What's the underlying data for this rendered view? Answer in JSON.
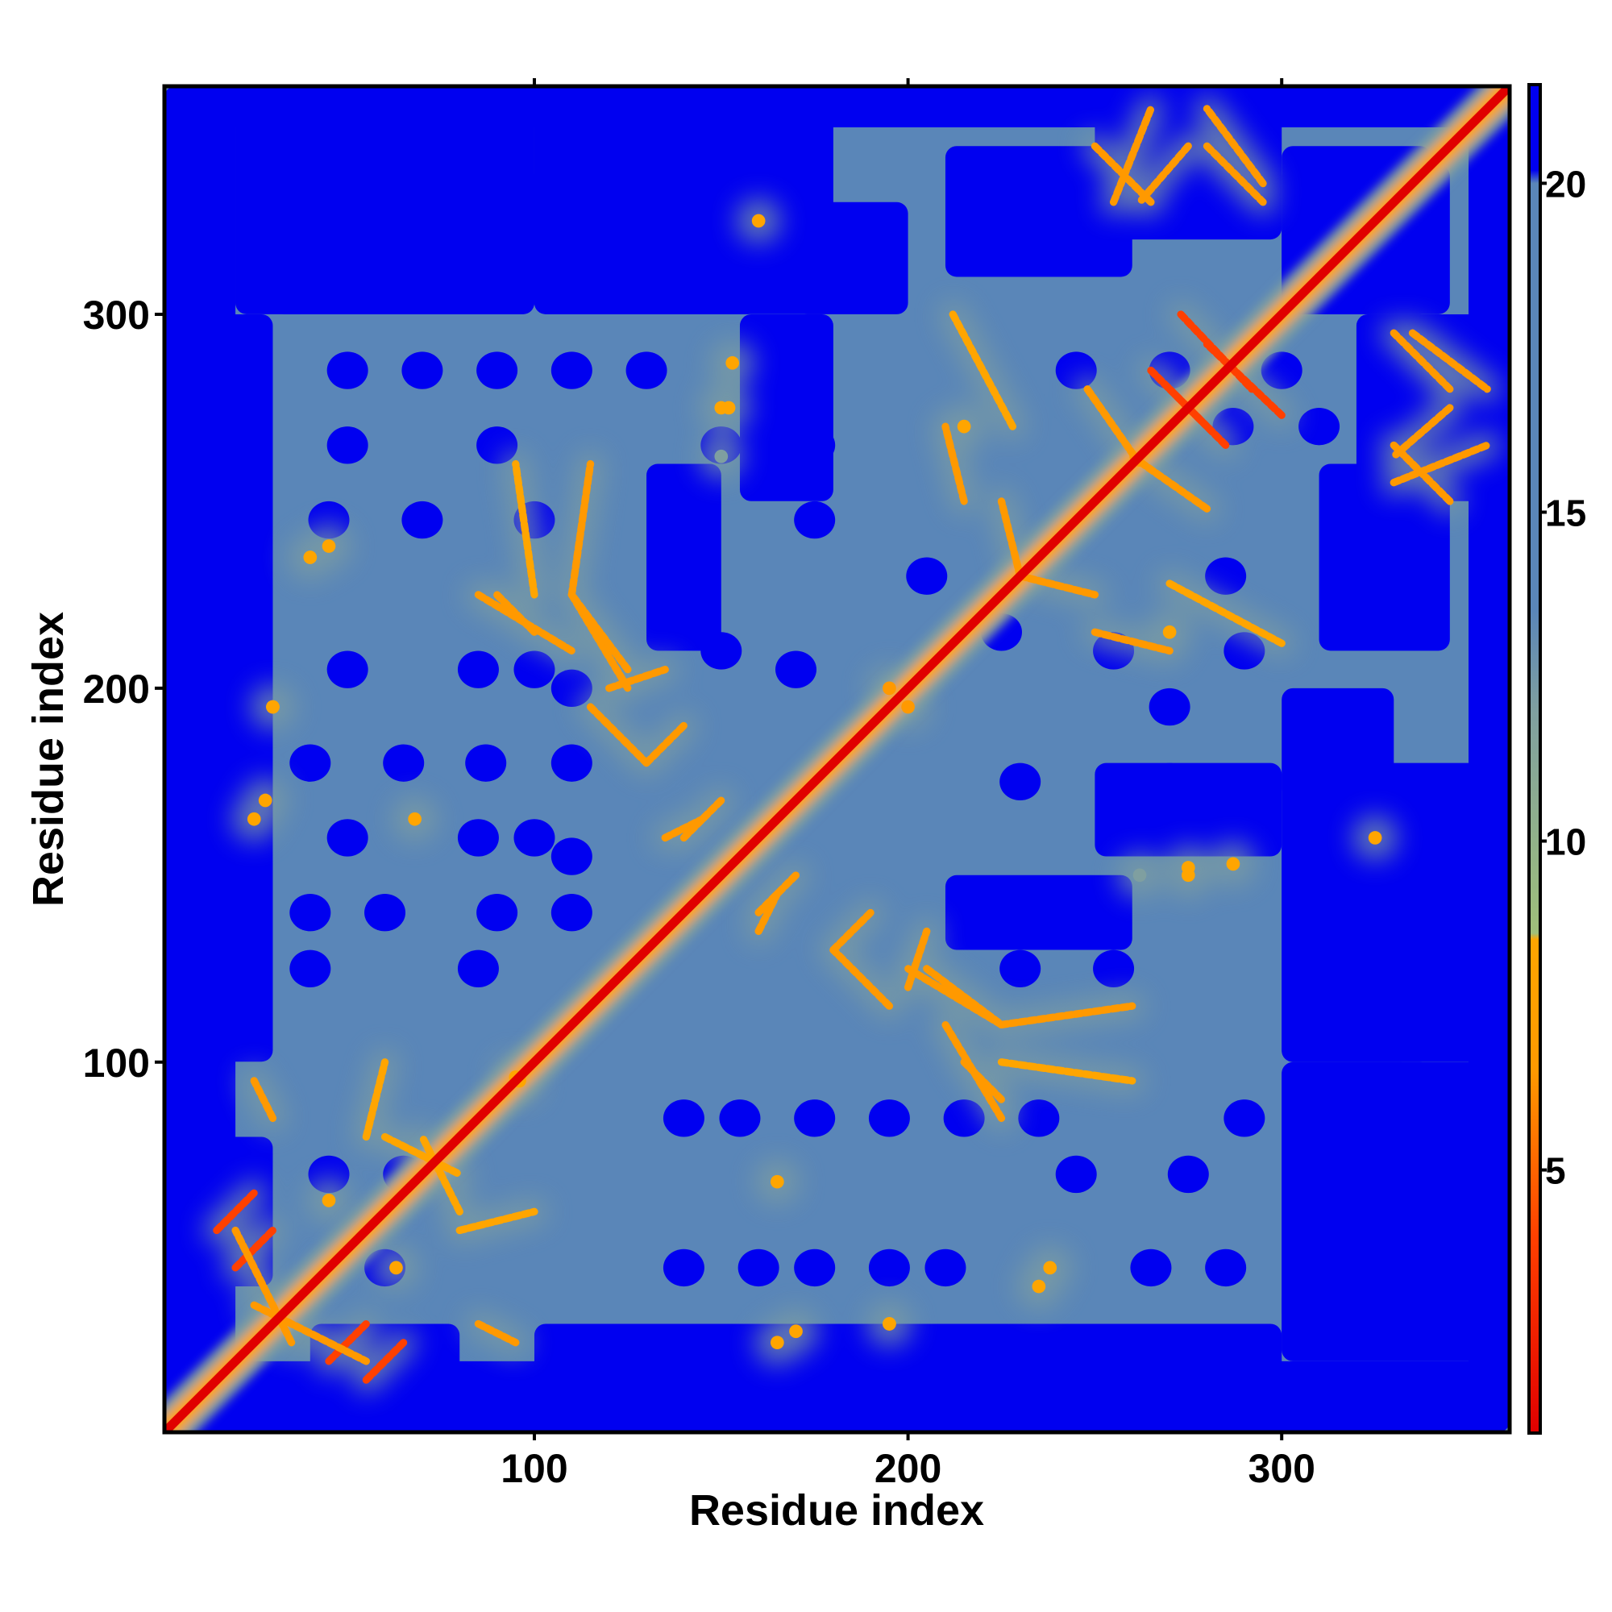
{
  "chart_data": {
    "type": "heatmap",
    "title": "",
    "xlabel": "Residue index",
    "ylabel": "Residue index",
    "xlim": [
      1,
      361
    ],
    "ylim": [
      1,
      361
    ],
    "x_ticks": [
      100,
      200,
      300
    ],
    "y_ticks": [
      100,
      200,
      300
    ],
    "colorbar": {
      "range": [
        1,
        21.5
      ],
      "ticks": [
        5,
        10,
        15,
        20
      ],
      "colormap": [
        {
          "value": 1,
          "color": "#e00000"
        },
        {
          "value": 4,
          "color": "#ff4000"
        },
        {
          "value": 6.5,
          "color": "#ff9900"
        },
        {
          "value": 8.5,
          "color": "#ffa500"
        },
        {
          "value": 8.6,
          "color": "#9fbf7a"
        },
        {
          "value": 12,
          "color": "#7f9fa0"
        },
        {
          "value": 13.5,
          "color": "#5a86b8"
        },
        {
          "value": 20,
          "color": "#5a86b8"
        },
        {
          "value": 20.2,
          "color": "#0000f0"
        },
        {
          "value": 21.5,
          "color": "#0000f0"
        }
      ]
    },
    "value_description": "pairwise residue distance matrix, symmetric",
    "main_diagonal": {
      "from": 1,
      "to": 361,
      "value": 1
    },
    "near_diagonal_band_value": 7,
    "background_value": 16,
    "far_value": 21,
    "far_regions_blue": [
      {
        "x": [
          1,
          20
        ],
        "y": [
          1,
          361
        ]
      },
      {
        "x": [
          1,
          361
        ],
        "y": [
          1,
          15
        ]
      },
      {
        "x": [
          1,
          361
        ],
        "y": [
          350,
          361
        ]
      },
      {
        "x": [
          355,
          361
        ],
        "y": [
          1,
          361
        ]
      },
      {
        "x": [
          1,
          10
        ],
        "y": [
          300,
          361
        ]
      },
      {
        "x": [
          20,
          40
        ],
        "y": [
          300,
          361
        ]
      },
      {
        "x": [
          30,
          100
        ],
        "y": [
          300,
          340
        ]
      },
      {
        "x": [
          100,
          160
        ],
        "y": [
          300,
          335
        ]
      },
      {
        "x": [
          170,
          200
        ],
        "y": [
          300,
          330
        ]
      },
      {
        "x": [
          210,
          260
        ],
        "y": [
          310,
          345
        ]
      },
      {
        "x": [
          300,
          340
        ],
        "y": [
          300,
          345
        ]
      },
      {
        "x": [
          320,
          361
        ],
        "y": [
          250,
          300
        ]
      },
      {
        "x": [
          300,
          361
        ],
        "y": [
          100,
          180
        ]
      },
      {
        "x": [
          300,
          361
        ],
        "y": [
          20,
          100
        ]
      },
      {
        "x": [
          40,
          80
        ],
        "y": [
          15,
          30
        ]
      },
      {
        "x": [
          100,
          300
        ],
        "y": [
          15,
          30
        ]
      },
      {
        "x": [
          250,
          300
        ],
        "y": [
          155,
          180
        ]
      },
      {
        "x": [
          210,
          260
        ],
        "y": [
          130,
          150
        ]
      }
    ],
    "contact_features": [
      {
        "x1": 250,
        "y1": 345,
        "x2": 265,
        "y2": 330,
        "value": 5
      },
      {
        "x1": 275,
        "y1": 345,
        "x2": 262,
        "y2": 330,
        "value": 5
      },
      {
        "x1": 280,
        "y1": 345,
        "x2": 295,
        "y2": 330,
        "value": 5
      },
      {
        "x1": 273,
        "y1": 300,
        "x2": 292,
        "y2": 280,
        "value": 3
      },
      {
        "x1": 265,
        "y1": 285,
        "x2": 280,
        "y2": 270,
        "value": 3
      },
      {
        "x1": 248,
        "y1": 280,
        "x2": 262,
        "y2": 260,
        "value": 6
      },
      {
        "x1": 335,
        "y1": 295,
        "x2": 355,
        "y2": 280,
        "value": 6
      },
      {
        "x1": 330,
        "y1": 255,
        "x2": 355,
        "y2": 265,
        "value": 6
      },
      {
        "x1": 15,
        "y1": 55,
        "x2": 25,
        "y2": 65,
        "value": 4
      },
      {
        "x1": 45,
        "y1": 20,
        "x2": 55,
        "y2": 30,
        "value": 4
      },
      {
        "x1": 25,
        "y1": 35,
        "x2": 55,
        "y2": 20,
        "value": 5
      },
      {
        "x1": 85,
        "y1": 225,
        "x2": 110,
        "y2": 210,
        "value": 5
      },
      {
        "x1": 110,
        "y1": 225,
        "x2": 125,
        "y2": 200,
        "value": 5
      },
      {
        "x1": 120,
        "y1": 200,
        "x2": 135,
        "y2": 205,
        "value": 6
      },
      {
        "x1": 115,
        "y1": 195,
        "x2": 130,
        "y2": 180,
        "value": 6
      },
      {
        "x1": 135,
        "y1": 160,
        "x2": 145,
        "y2": 165,
        "value": 6
      },
      {
        "x1": 205,
        "y1": 125,
        "x2": 225,
        "y2": 110,
        "value": 5
      },
      {
        "x1": 215,
        "y1": 100,
        "x2": 225,
        "y2": 90,
        "value": 5
      },
      {
        "x1": 225,
        "y1": 110,
        "x2": 260,
        "y2": 115,
        "value": 6
      },
      {
        "x1": 225,
        "y1": 100,
        "x2": 260,
        "y2": 95,
        "value": 7
      },
      {
        "x1": 228,
        "y1": 270,
        "x2": 212,
        "y2": 300,
        "value": 7
      },
      {
        "x1": 230,
        "y1": 230,
        "x2": 250,
        "y2": 225,
        "value": 6
      },
      {
        "x1": 250,
        "y1": 215,
        "x2": 270,
        "y2": 210,
        "value": 6
      },
      {
        "x1": 160,
        "y1": 140,
        "x2": 170,
        "y2": 150,
        "value": 6
      },
      {
        "x1": 180,
        "y1": 130,
        "x2": 190,
        "y2": 140,
        "value": 6
      },
      {
        "x1": 60,
        "y1": 80,
        "x2": 80,
        "y2": 70,
        "value": 7
      },
      {
        "x1": 80,
        "y1": 55,
        "x2": 100,
        "y2": 60,
        "value": 7
      },
      {
        "x1": 85,
        "y1": 30,
        "x2": 95,
        "y2": 25,
        "value": 5
      }
    ],
    "contact_spots": [
      {
        "x": 25,
        "y": 165,
        "value": 8
      },
      {
        "x": 30,
        "y": 195,
        "value": 8
      },
      {
        "x": 40,
        "y": 235,
        "value": 8
      },
      {
        "x": 68,
        "y": 165,
        "value": 8
      },
      {
        "x": 170,
        "y": 28,
        "value": 7
      },
      {
        "x": 195,
        "y": 30,
        "value": 7
      },
      {
        "x": 238,
        "y": 45,
        "value": 8
      },
      {
        "x": 275,
        "y": 150,
        "value": 8
      },
      {
        "x": 287,
        "y": 153,
        "value": 8
      },
      {
        "x": 262,
        "y": 150,
        "value": 9
      },
      {
        "x": 152,
        "y": 275,
        "value": 8
      },
      {
        "x": 160,
        "y": 325,
        "value": 8
      },
      {
        "x": 215,
        "y": 270,
        "value": 8
      },
      {
        "x": 63,
        "y": 45,
        "value": 8
      },
      {
        "x": 96,
        "y": 95,
        "value": 8
      },
      {
        "x": 200,
        "y": 195,
        "value": 5
      }
    ],
    "holes": [
      {
        "x": 50,
        "y": 285
      },
      {
        "x": 70,
        "y": 285
      },
      {
        "x": 90,
        "y": 285
      },
      {
        "x": 110,
        "y": 285
      },
      {
        "x": 130,
        "y": 285
      },
      {
        "x": 50,
        "y": 265
      },
      {
        "x": 90,
        "y": 265
      },
      {
        "x": 45,
        "y": 245
      },
      {
        "x": 70,
        "y": 245
      },
      {
        "x": 100,
        "y": 245
      },
      {
        "x": 50,
        "y": 205
      },
      {
        "x": 85,
        "y": 205
      },
      {
        "x": 100,
        "y": 205
      },
      {
        "x": 110,
        "y": 200
      },
      {
        "x": 15,
        "y": 180
      },
      {
        "x": 40,
        "y": 180
      },
      {
        "x": 65,
        "y": 180
      },
      {
        "x": 87,
        "y": 180
      },
      {
        "x": 110,
        "y": 180
      },
      {
        "x": 50,
        "y": 160
      },
      {
        "x": 85,
        "y": 160
      },
      {
        "x": 100,
        "y": 160
      },
      {
        "x": 110,
        "y": 155
      },
      {
        "x": 40,
        "y": 140
      },
      {
        "x": 60,
        "y": 140
      },
      {
        "x": 90,
        "y": 140
      },
      {
        "x": 110,
        "y": 140
      },
      {
        "x": 40,
        "y": 125
      },
      {
        "x": 85,
        "y": 125
      },
      {
        "x": 140,
        "y": 85
      },
      {
        "x": 155,
        "y": 85
      },
      {
        "x": 175,
        "y": 85
      },
      {
        "x": 195,
        "y": 85
      },
      {
        "x": 215,
        "y": 85
      },
      {
        "x": 235,
        "y": 85
      },
      {
        "x": 45,
        "y": 70
      },
      {
        "x": 65,
        "y": 70
      },
      {
        "x": 140,
        "y": 45
      },
      {
        "x": 160,
        "y": 45
      },
      {
        "x": 175,
        "y": 45
      },
      {
        "x": 195,
        "y": 45
      },
      {
        "x": 210,
        "y": 45
      },
      {
        "x": 60,
        "y": 45
      },
      {
        "x": 245,
        "y": 70
      },
      {
        "x": 275,
        "y": 70
      },
      {
        "x": 290,
        "y": 85
      },
      {
        "x": 285,
        "y": 45
      },
      {
        "x": 265,
        "y": 45
      },
      {
        "x": 205,
        "y": 230
      },
      {
        "x": 225,
        "y": 215
      },
      {
        "x": 230,
        "y": 175
      },
      {
        "x": 230,
        "y": 125
      },
      {
        "x": 255,
        "y": 125
      },
      {
        "x": 270,
        "y": 175
      },
      {
        "x": 285,
        "y": 230
      },
      {
        "x": 290,
        "y": 210
      },
      {
        "x": 270,
        "y": 195
      },
      {
        "x": 255,
        "y": 210
      },
      {
        "x": 245,
        "y": 285
      },
      {
        "x": 270,
        "y": 285
      },
      {
        "x": 287,
        "y": 270
      },
      {
        "x": 300,
        "y": 285
      },
      {
        "x": 310,
        "y": 270
      },
      {
        "x": 330,
        "y": 285
      },
      {
        "x": 150,
        "y": 265
      },
      {
        "x": 175,
        "y": 265
      },
      {
        "x": 140,
        "y": 240
      },
      {
        "x": 175,
        "y": 245
      },
      {
        "x": 150,
        "y": 210
      },
      {
        "x": 170,
        "y": 205
      },
      {
        "x": 145,
        "y": 320
      },
      {
        "x": 120,
        "y": 320
      }
    ]
  }
}
